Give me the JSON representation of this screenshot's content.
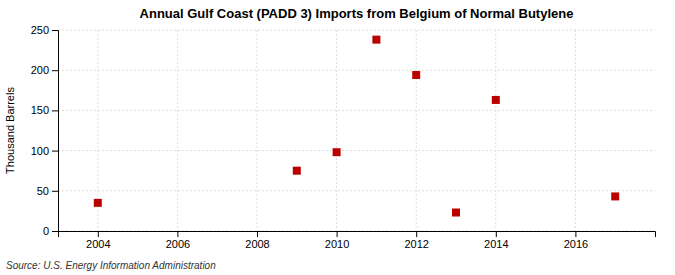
{
  "chart_data": {
    "type": "scatter",
    "title": "Annual Gulf Coast (PADD 3) Imports from Belgium of Normal Butylene",
    "ylabel": "Thousand Barrels",
    "annotations": [
      "Source: U.S. Energy Information Administration"
    ],
    "x": [
      2004,
      2009,
      2010,
      2011,
      2012,
      2013,
      2014,
      2017
    ],
    "values": [
      35,
      75,
      98,
      238,
      194,
      23,
      163,
      43
    ],
    "color": "#bb0000",
    "marker": "square",
    "xlim": [
      2003.0,
      2018.0
    ],
    "ylim": [
      0,
      250
    ],
    "xticks": [
      2004,
      2006,
      2008,
      2010,
      2012,
      2014,
      2016
    ],
    "yticks": [
      0,
      50,
      100,
      150,
      200,
      250
    ],
    "grid": true
  }
}
